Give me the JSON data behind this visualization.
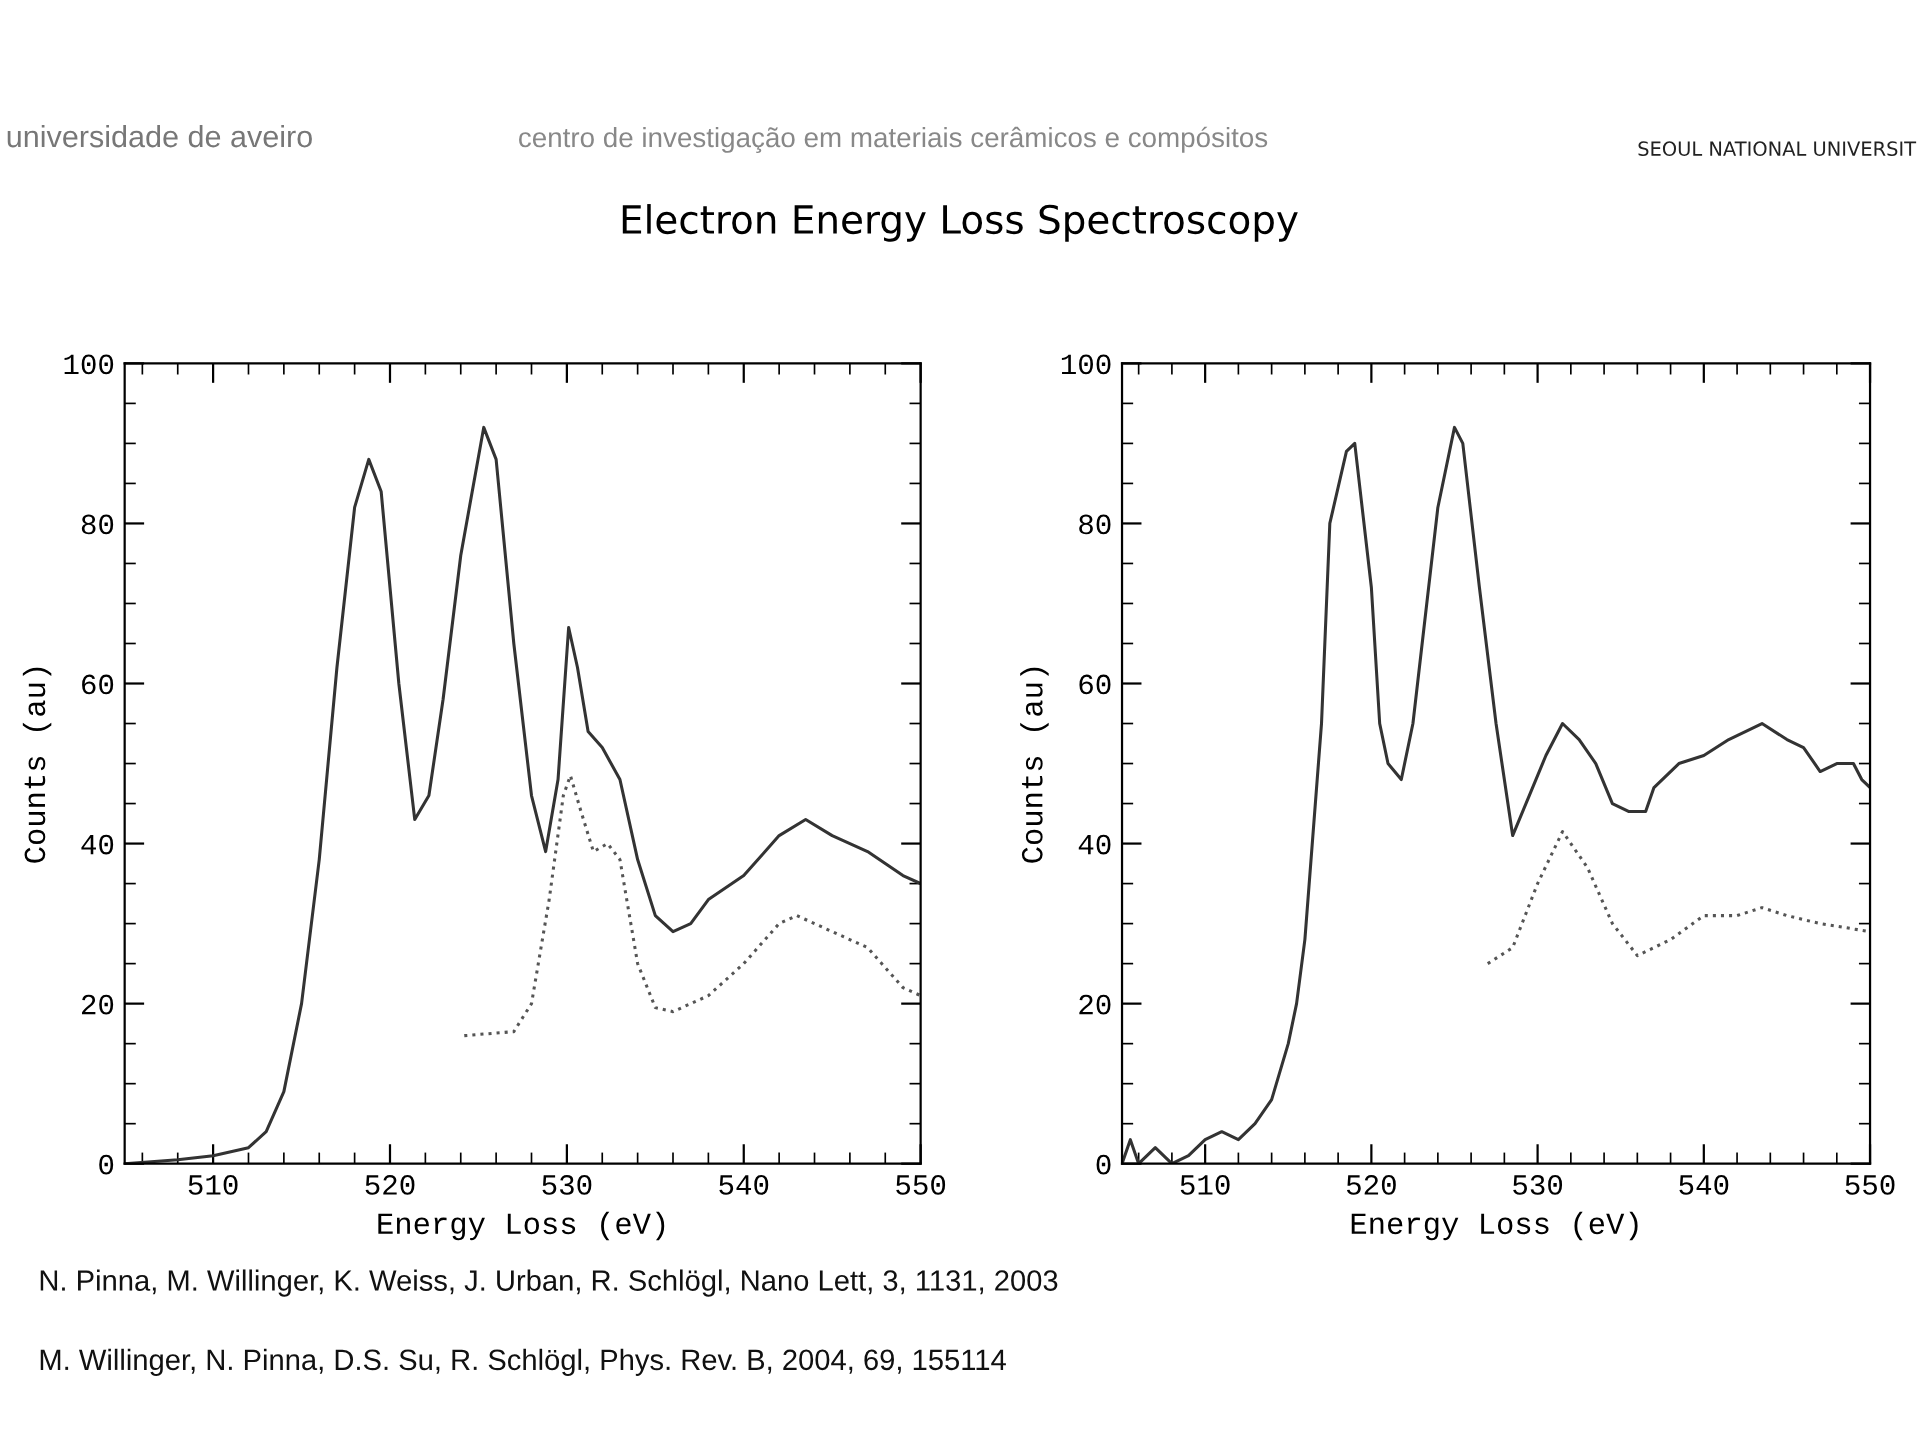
{
  "chart_data": [
    {
      "type": "line",
      "title": "Electron Energy Loss Spectroscopy",
      "xlabel": "Energy Loss (eV)",
      "ylabel": "Counts (au)",
      "xlim": [
        505,
        550
      ],
      "xticks": [
        510,
        520,
        530,
        540,
        550
      ],
      "ylim": [
        0,
        100
      ],
      "yticks": [
        0,
        20,
        40,
        60,
        80,
        100
      ],
      "grid": false,
      "legend": false,
      "series": [
        {
          "color": "#333333",
          "line_style": "solid",
          "x": [
            505,
            508,
            510,
            512,
            513,
            514,
            515,
            516,
            517,
            518,
            518.8,
            519.5,
            520.5,
            521.4,
            522.2,
            523,
            524,
            525.3,
            526,
            527,
            528,
            528.8,
            529.5,
            530.1,
            530.6,
            531.2,
            532,
            533,
            534,
            535,
            536,
            537,
            538,
            540,
            542,
            543.5,
            545,
            547,
            549,
            550
          ],
          "values": [
            0,
            0.5,
            1,
            2,
            4,
            9,
            20,
            38,
            62,
            82,
            88,
            84,
            60,
            43,
            46,
            58,
            76,
            92,
            88,
            65,
            46,
            39,
            48,
            67,
            62,
            54,
            52,
            48,
            38,
            31,
            29,
            30,
            33,
            36,
            41,
            43,
            41,
            39,
            36,
            35
          ]
        },
        {
          "color": "#555555",
          "line_style": "dotted",
          "x": [
            524.2,
            527,
            528,
            529,
            529.8,
            530.2,
            530.8,
            531.5,
            532.3,
            533,
            534,
            535,
            536,
            538,
            540,
            542,
            543,
            545,
            547,
            549,
            550
          ],
          "values": [
            16,
            16.5,
            20,
            33,
            46,
            48.5,
            44,
            39,
            40,
            38,
            25,
            19.5,
            19,
            21,
            25,
            30,
            31,
            29,
            27,
            22,
            21
          ]
        }
      ],
      "annotations": [
        "universidade de aveiro",
        "centro de investigação em materiais cerâmicos e compósitos",
        "SEOUL NATIONAL UNIVERSIT",
        "N. Pinna, M. Willinger, K. Weiss, J. Urban, R. Schlögl, Nano Lett, 3, 1131, 2003",
        "M. Willinger, N. Pinna, D.S. Su, R. Schlögl, Phys. Rev. B, 2004, 69, 155114"
      ]
    },
    {
      "type": "line",
      "xlabel": "Energy Loss (eV)",
      "ylabel": "Counts (au)",
      "xlim": [
        505,
        550
      ],
      "xticks": [
        510,
        520,
        530,
        540,
        550
      ],
      "ylim": [
        0,
        100
      ],
      "yticks": [
        0,
        20,
        40,
        60,
        80,
        100
      ],
      "grid": false,
      "legend": false,
      "series": [
        {
          "color": "#333333",
          "line_style": "solid",
          "x": [
            505,
            505.5,
            506,
            507,
            508,
            509,
            510,
            511,
            512,
            513,
            514,
            515,
            515.5,
            516,
            517,
            517.5,
            518.5,
            519,
            520,
            520.5,
            521,
            521.8,
            522.5,
            523,
            524,
            525,
            525.5,
            526.5,
            527.5,
            528.5,
            529.5,
            530.5,
            531.5,
            532.5,
            533.5,
            534.5,
            535.5,
            536.5,
            537,
            538.5,
            540,
            541.5,
            543.5,
            545,
            546,
            547,
            548,
            549,
            549.5,
            550
          ],
          "values": [
            0,
            3,
            0,
            2,
            0,
            1,
            3,
            4,
            3,
            5,
            8,
            15,
            20,
            28,
            55,
            80,
            89,
            90,
            72,
            55,
            50,
            48,
            55,
            64,
            82,
            92,
            90,
            72,
            55,
            41,
            46,
            51,
            55,
            53,
            50,
            45,
            44,
            44,
            47,
            50,
            51,
            53,
            55,
            53,
            52,
            49,
            50,
            50,
            48,
            47
          ]
        },
        {
          "color": "#555555",
          "line_style": "dotted",
          "x": [
            527,
            528.5,
            530,
            531.5,
            533,
            534.5,
            536,
            538,
            540,
            542,
            543.5,
            545,
            547,
            550
          ],
          "values": [
            25,
            27,
            35,
            41.5,
            37,
            30,
            26,
            28,
            31,
            31,
            32,
            31,
            30,
            29
          ]
        }
      ]
    }
  ]
}
